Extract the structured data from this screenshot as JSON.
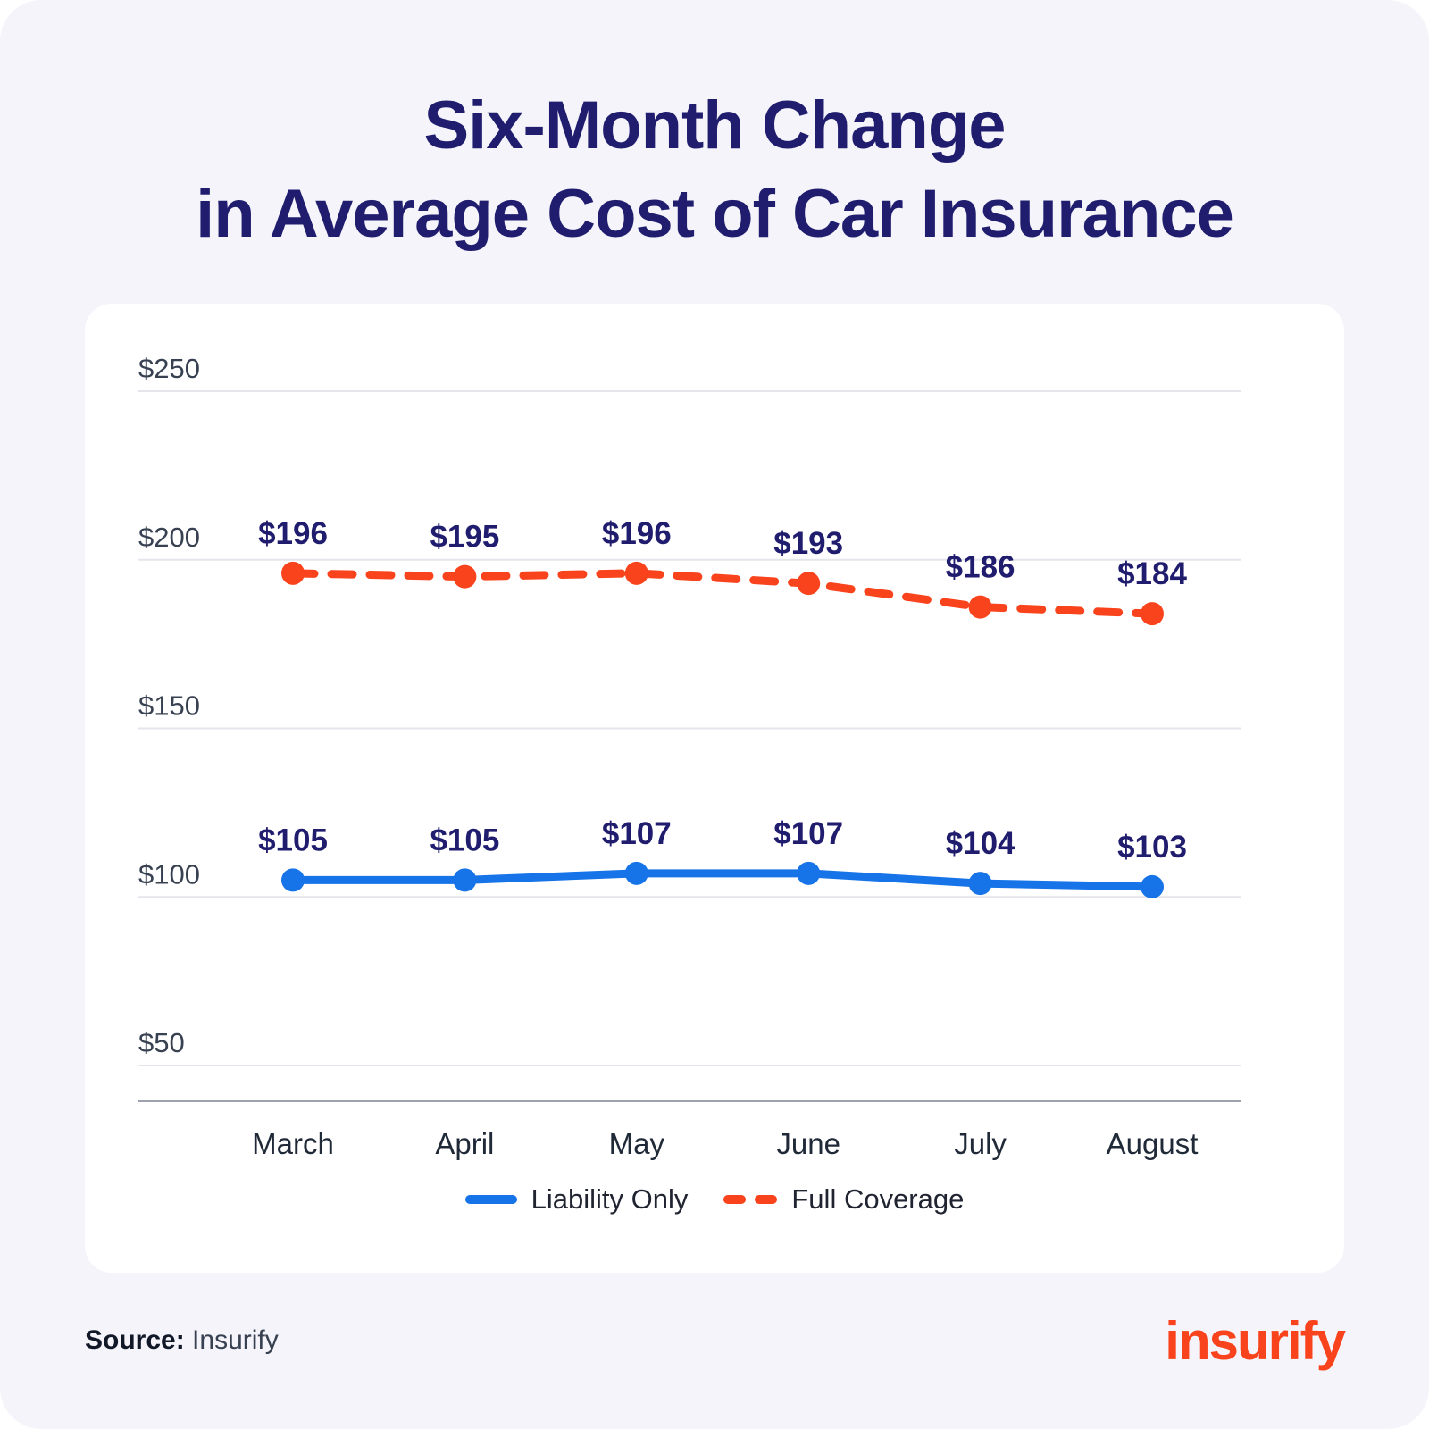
{
  "header": {
    "title_line1": "Six-Month Change",
    "title_line2": "in Average Cost of Car Insurance"
  },
  "chart_data": {
    "type": "line",
    "title": "Six-Month Change in Average Cost of Car Insurance",
    "categories": [
      "March",
      "April",
      "May",
      "June",
      "July",
      "August"
    ],
    "series": [
      {
        "name": "Liability Only",
        "values": [
          105,
          105,
          107,
          107,
          104,
          103
        ],
        "color": "#1673E8",
        "style": "solid"
      },
      {
        "name": "Full Coverage",
        "values": [
          196,
          195,
          196,
          193,
          186,
          184
        ],
        "color": "#F9431C",
        "style": "dashed"
      }
    ],
    "ylim": [
      50,
      250
    ],
    "yticks": [
      250,
      200,
      150,
      100,
      50
    ],
    "ytick_prefix": "$",
    "data_label_prefix": "$",
    "grid": true,
    "legend_position": "bottom",
    "label_color": "#201D6E",
    "grid_color": "#E5E5EC",
    "axis_color": "#9CA3AF",
    "tick_color": "#374151"
  },
  "footer": {
    "source_label": "Source:",
    "source_value": "Insurify",
    "logo_text": "insurify"
  },
  "colors": {
    "background": "#F4F4FA",
    "title_navy": "#201D6E",
    "brand_orange": "#F9431C"
  }
}
